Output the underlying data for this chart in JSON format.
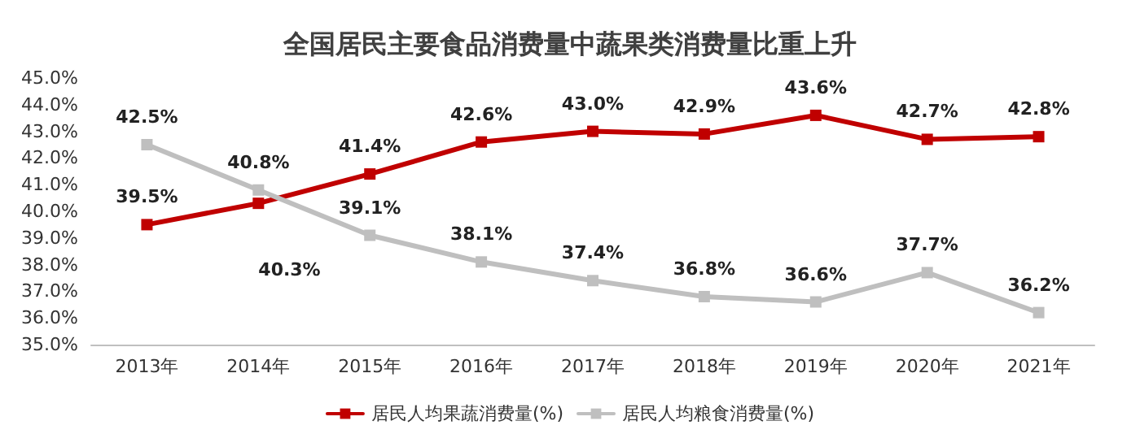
{
  "chart_data": {
    "type": "line",
    "title": "全国居民主要食品消费量中蔬果类消费量比重上升",
    "categories": [
      "2013年",
      "2014年",
      "2015年",
      "2016年",
      "2017年",
      "2018年",
      "2019年",
      "2020年",
      "2021年"
    ],
    "series": [
      {
        "name": "居民人均果蔬消费量(%)",
        "color": "#c00000",
        "values": [
          39.5,
          40.3,
          41.4,
          42.6,
          43.0,
          42.9,
          43.6,
          42.7,
          42.8
        ],
        "value_labels": [
          "39.5%",
          "40.3%",
          "41.4%",
          "42.6%",
          "43.0%",
          "42.9%",
          "43.6%",
          "42.7%",
          "42.8%"
        ]
      },
      {
        "name": "居民人均粮食消费量(%)",
        "color": "#bfbfbf",
        "values": [
          42.5,
          40.8,
          39.1,
          38.1,
          37.4,
          36.8,
          36.6,
          37.7,
          36.2
        ],
        "value_labels": [
          "42.5%",
          "40.8%",
          "39.1%",
          "38.1%",
          "37.4%",
          "36.8%",
          "36.6%",
          "37.7%",
          "36.2%"
        ]
      }
    ],
    "ylim": [
      35,
      45
    ],
    "yticks": [
      {
        "value": 35,
        "label": "35.0%"
      },
      {
        "value": 36,
        "label": "36.0%"
      },
      {
        "value": 37,
        "label": "37.0%"
      },
      {
        "value": 38,
        "label": "38.0%"
      },
      {
        "value": 39,
        "label": "39.0%"
      },
      {
        "value": 40,
        "label": "40.0%"
      },
      {
        "value": 41,
        "label": "41.0%"
      },
      {
        "value": 42,
        "label": "42.0%"
      },
      {
        "value": 43,
        "label": "43.0%"
      },
      {
        "value": 44,
        "label": "44.0%"
      },
      {
        "value": 45,
        "label": "45.0%"
      }
    ],
    "grid": false,
    "legend": "bottom",
    "marker": "square",
    "line_style": "solid"
  }
}
